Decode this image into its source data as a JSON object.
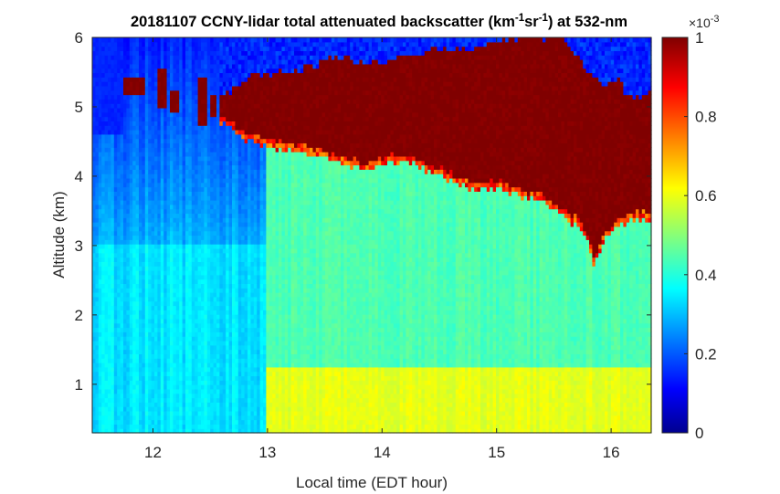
{
  "chart_data": {
    "type": "heatmap",
    "title": {
      "pre": "20181107 CCNY-lidar total attenuated backscatter (km",
      "sup1": "-1",
      "mid": "sr",
      "sup2": "-1",
      "post": ") at 532-nm"
    },
    "xlabel": "Local time (EDT hour)",
    "ylabel": "Altitude (km)",
    "xlim": [
      11.47,
      16.35
    ],
    "ylim": [
      0.3,
      6
    ],
    "xticks": [
      12,
      13,
      14,
      15,
      16
    ],
    "yticks": [
      1,
      2,
      3,
      4,
      5,
      6
    ],
    "colorbar": {
      "colormap": "jet",
      "clim": [
        0,
        1
      ],
      "ticks": [
        0,
        0.2,
        0.4,
        0.6,
        0.8,
        1
      ],
      "tick_labels": [
        "0",
        "0.2",
        "0.4",
        "0.6",
        "0.8",
        "1"
      ],
      "exponent_base": "×10",
      "exponent_power": "-3",
      "units": "km^-1 sr^-1"
    },
    "field_description_values": {
      "aerosol_layer_low_value": 0.6,
      "aerosol_layer_top_km": 1.25,
      "free_troposphere_value": 0.45,
      "clear_early_value": 0.3,
      "cloud_value": 1.0,
      "above_cloud_value": 0.12,
      "instrument_change_time": 12.98
    },
    "cloud_base_km": {
      "time": [
        12.57,
        12.7,
        12.8,
        12.95,
        13.1,
        13.3,
        13.5,
        13.7,
        13.9,
        14.1,
        14.2,
        14.3,
        14.45,
        14.6,
        14.8,
        15.0,
        15.2,
        15.4,
        15.55,
        15.7,
        15.8,
        15.85,
        15.95,
        16.05,
        16.2,
        16.35
      ],
      "altitude": [
        4.9,
        4.75,
        4.62,
        4.55,
        4.5,
        4.45,
        4.35,
        4.25,
        4.2,
        4.3,
        4.35,
        4.25,
        4.15,
        4.05,
        3.9,
        3.95,
        3.8,
        3.75,
        3.55,
        3.4,
        3.15,
        2.85,
        3.2,
        3.35,
        3.5,
        3.45
      ]
    },
    "cloud_top_km": {
      "time": [
        12.57,
        12.8,
        13.0,
        13.2,
        13.4,
        13.6,
        13.8,
        14.0,
        14.2,
        14.4,
        14.6,
        14.8,
        15.0,
        15.2,
        15.4,
        15.5,
        15.6,
        15.75,
        15.9,
        16.05,
        16.2,
        16.35
      ],
      "altitude": [
        5.1,
        5.4,
        5.5,
        5.5,
        5.6,
        5.7,
        5.7,
        5.65,
        5.75,
        5.8,
        5.85,
        5.85,
        5.95,
        6.0,
        6.0,
        6.0,
        5.95,
        5.6,
        5.3,
        5.4,
        5.1,
        5.2
      ]
    },
    "early_cloud_patches": [
      {
        "t0": 11.75,
        "t1": 11.92,
        "z0": 5.15,
        "z1": 5.45
      },
      {
        "t0": 12.03,
        "t1": 12.12,
        "z0": 5.0,
        "z1": 5.55
      },
      {
        "t0": 12.16,
        "t1": 12.22,
        "z0": 4.95,
        "z1": 5.25
      },
      {
        "t0": 12.38,
        "t1": 12.46,
        "z0": 4.75,
        "z1": 5.45
      },
      {
        "t0": 12.5,
        "t1": 12.55,
        "z0": 4.85,
        "z1": 5.15
      }
    ]
  }
}
